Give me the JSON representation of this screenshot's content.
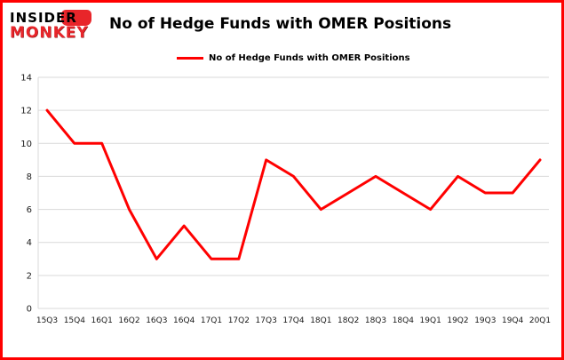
{
  "header": {
    "logo_line1": "INSIDER",
    "logo_line2": "MONKEY",
    "title": "No of Hedge Funds with OMER Positions"
  },
  "legend": {
    "label": "No of Hedge Funds with OMER Positions"
  },
  "colors": {
    "line": "#ff0000",
    "border": "#ff0000",
    "grid": "#d9d9d9",
    "axis_text": "#1a1a1a"
  },
  "chart_data": {
    "type": "line",
    "title": "No of Hedge Funds with OMER Positions",
    "categories": [
      "15Q3",
      "15Q4",
      "16Q1",
      "16Q2",
      "16Q3",
      "16Q4",
      "17Q1",
      "17Q2",
      "17Q3",
      "17Q4",
      "18Q1",
      "18Q2",
      "18Q3",
      "18Q4",
      "19Q1",
      "19Q2",
      "19Q3",
      "19Q4",
      "20Q1"
    ],
    "values": [
      12,
      10,
      10,
      6,
      3,
      5,
      3,
      3,
      9,
      8,
      6,
      7,
      8,
      7,
      6,
      8,
      7,
      7,
      9
    ],
    "xlabel": "",
    "ylabel": "",
    "ylim": [
      0,
      14
    ],
    "yticks": [
      0,
      2,
      4,
      6,
      8,
      10,
      12,
      14
    ],
    "grid": true,
    "legend_position": "top-left",
    "line_color": "#ff0000"
  }
}
